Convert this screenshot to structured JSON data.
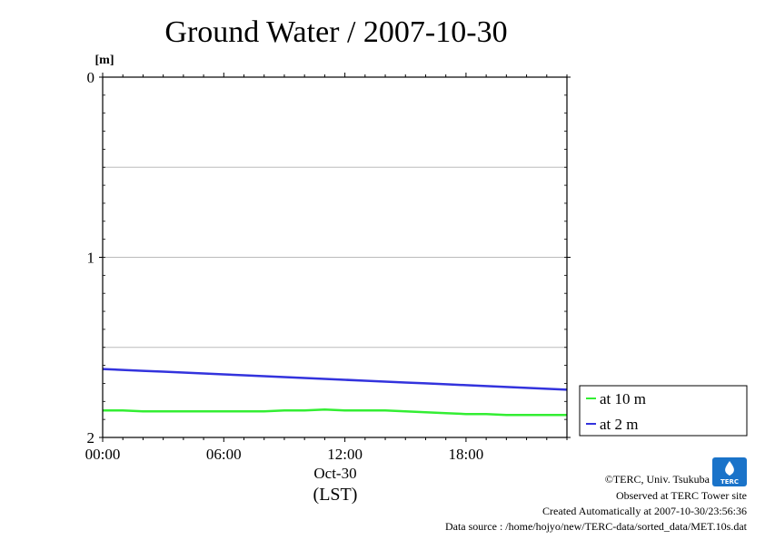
{
  "chart_data": {
    "type": "line",
    "title": "Ground Water / 2007-10-30",
    "ylabel": "[m]",
    "ylim": [
      2,
      0
    ],
    "yticks": [
      "0",
      "1",
      "2"
    ],
    "y_gridlines": [
      0.5,
      1,
      1.5
    ],
    "y_inverted": true,
    "xlim": [
      0,
      23
    ],
    "xticks": [
      "00:00",
      "06:00",
      "12:00",
      "18:00"
    ],
    "xtick_values": [
      0,
      6,
      12,
      18
    ],
    "xdate_label": "Oct-30",
    "xunit_label": "(LST)",
    "legend_position": "right",
    "series": [
      {
        "name": "at 10 m",
        "color": "#33ee33",
        "x": [
          0,
          1,
          2,
          3,
          4,
          5,
          6,
          7,
          8,
          9,
          10,
          11,
          12,
          13,
          14,
          15,
          16,
          17,
          18,
          19,
          20,
          21,
          22,
          23
        ],
        "y": [
          1.85,
          1.85,
          1.855,
          1.855,
          1.855,
          1.855,
          1.855,
          1.855,
          1.855,
          1.85,
          1.85,
          1.845,
          1.85,
          1.85,
          1.85,
          1.855,
          1.86,
          1.865,
          1.87,
          1.87,
          1.875,
          1.875,
          1.875,
          1.875
        ]
      },
      {
        "name": "at 2 m",
        "color": "#3333dd",
        "x": [
          0,
          1,
          2,
          3,
          4,
          5,
          6,
          7,
          8,
          9,
          10,
          11,
          12,
          13,
          14,
          15,
          16,
          17,
          18,
          19,
          20,
          21,
          22,
          23
        ],
        "y": [
          1.62,
          1.625,
          1.63,
          1.635,
          1.64,
          1.645,
          1.65,
          1.655,
          1.66,
          1.665,
          1.67,
          1.675,
          1.68,
          1.685,
          1.69,
          1.695,
          1.7,
          1.705,
          1.71,
          1.715,
          1.72,
          1.725,
          1.73,
          1.735
        ]
      }
    ]
  },
  "footer": {
    "copyright": "©TERC, Univ. Tsukuba",
    "observed": "Observed at TERC Tower site",
    "created": "Created Automatically at 2007-10-30/23:56:36",
    "source": "Data source : /home/hojyo/new/TERC-data/sorted_data/MET.10s.dat"
  },
  "logo": {
    "text": "TERC",
    "color": "#1a73c9"
  }
}
